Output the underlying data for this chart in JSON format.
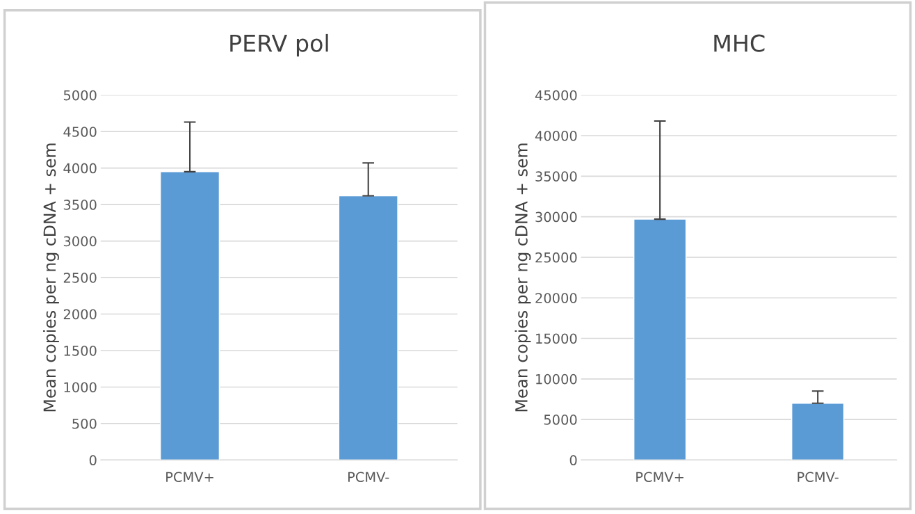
{
  "chart_data": [
    {
      "type": "bar",
      "title": "PERV pol",
      "ylabel": "Mean copies per ng cDNA + sem",
      "categories": [
        "PCMV+",
        "PCMV-"
      ],
      "values": [
        3950,
        3620
      ],
      "errors": [
        [
          3950,
          4630
        ],
        [
          3620,
          4070
        ]
      ],
      "color": "#5b9bd5",
      "ylim": [
        0,
        5000
      ],
      "yticks": [
        0,
        500,
        1000,
        1500,
        2000,
        2500,
        3000,
        3500,
        4000,
        4500,
        5000
      ],
      "grid": "y"
    },
    {
      "type": "bar",
      "title": "MHC",
      "ylabel": "Mean copies per ng cDNA + sem",
      "categories": [
        "PCMV+",
        "PCMV-"
      ],
      "values": [
        29700,
        7000
      ],
      "errors": [
        [
          29700,
          41800
        ],
        [
          7000,
          8500
        ]
      ],
      "color": "#5b9bd5",
      "ylim": [
        0,
        45000
      ],
      "yticks": [
        0,
        5000,
        10000,
        15000,
        20000,
        25000,
        30000,
        35000,
        40000,
        45000
      ],
      "grid": "y"
    }
  ]
}
